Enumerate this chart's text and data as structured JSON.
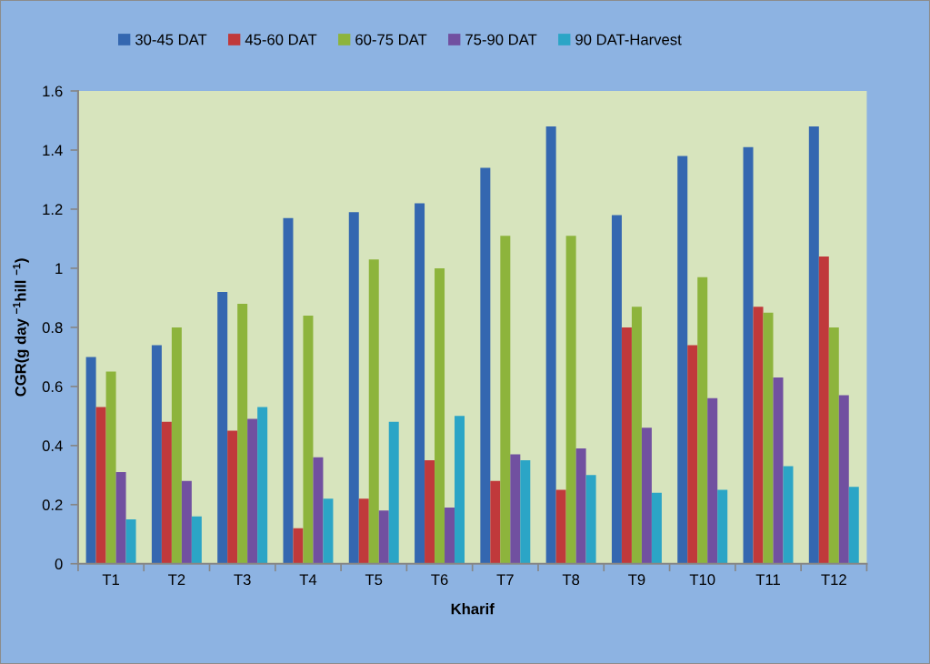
{
  "chart_data": {
    "type": "bar",
    "xlabel": "Kharif",
    "ylabel": "CGR(g day $^{−1}$hill $^{−1}$)",
    "categories": [
      "T1",
      "T2",
      "T3",
      "T4",
      "T5",
      "T6",
      "T7",
      "T8",
      "T9",
      "T10",
      "T11",
      "T12"
    ],
    "series": [
      {
        "name": "30-45 DAT",
        "color": "#3467b0",
        "values": [
          0.7,
          0.74,
          0.92,
          1.17,
          1.19,
          1.22,
          1.34,
          1.48,
          1.18,
          1.38,
          1.41,
          1.48
        ]
      },
      {
        "name": "45-60 DAT",
        "color": "#c0393b",
        "values": [
          0.53,
          0.48,
          0.45,
          0.12,
          0.22,
          0.35,
          0.28,
          0.25,
          0.8,
          0.74,
          0.87,
          1.04
        ]
      },
      {
        "name": "60-75 DAT",
        "color": "#8db43c",
        "values": [
          0.65,
          0.8,
          0.88,
          0.84,
          1.03,
          1.0,
          1.11,
          1.11,
          0.87,
          0.97,
          0.85,
          0.8
        ]
      },
      {
        "name": "75-90 DAT",
        "color": "#7150a0",
        "values": [
          0.31,
          0.28,
          0.49,
          0.36,
          0.18,
          0.19,
          0.37,
          0.39,
          0.46,
          0.56,
          0.63,
          0.57
        ]
      },
      {
        "name": "90 DAT-Harvest",
        "color": "#2ba5c6",
        "values": [
          0.15,
          0.16,
          0.53,
          0.22,
          0.48,
          0.5,
          0.35,
          0.3,
          0.24,
          0.25,
          0.33,
          0.26
        ]
      }
    ],
    "ylim": [
      0,
      1.6
    ],
    "yticks": [
      0,
      0.2,
      0.4,
      0.6,
      0.8,
      1,
      1.2,
      1.4,
      1.6
    ],
    "grid": false,
    "legend": "top"
  }
}
